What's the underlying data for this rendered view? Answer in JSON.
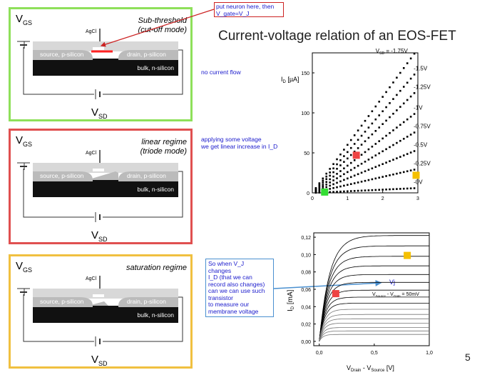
{
  "title": "Current-voltage relation of an EOS-FET",
  "page_number": "5",
  "panels": [
    {
      "mode_line1": "Sub-threshold",
      "mode_line2": "(cut-off mode)",
      "border_color": "#8ee05a"
    },
    {
      "mode_line1": "linear regime",
      "mode_line2": "(triode mode)",
      "border_color": "#e05050"
    },
    {
      "mode_line1": "saturation regime",
      "mode_line2": "",
      "border_color": "#f0c040"
    }
  ],
  "device_labels": {
    "vgs_main": "V",
    "vgs_sub": "GS",
    "vsd_main": "V",
    "vsd_sub": "SD",
    "agcl": "AgCl",
    "source": "source, p-silicon",
    "drain": "drain, p-silicon",
    "bulk": "bulk, n-silicon"
  },
  "annotations": {
    "top_box_line1": "put neuron here, then",
    "top_box_line2": "V_gate=V_J",
    "no_current": "no current flow",
    "linear_line1": "applying some voltage",
    "linear_line2": "we get linear increase in I_D",
    "bottom_box": [
      "So when V_J",
      "changes",
      "I_D (that we can",
      "record also changes)",
      "can we can use such",
      "transistor",
      "to measure our",
      "membrane voltage"
    ],
    "vj_label": "Vj"
  },
  "colors": {
    "annotation_blue": "#1a1acc",
    "box_blue": "#4a90d0",
    "red_box": "#cc2222",
    "marker_green": "#33dd33",
    "marker_red": "#ee4444",
    "marker_yellow": "#f5c000"
  },
  "chart_data": [
    {
      "type": "scatter",
      "ylabel_main": "I",
      "ylabel_sub": "D",
      "ylabel_unit": " [µA]",
      "xlim": [
        0,
        3
      ],
      "ylim": [
        0,
        175
      ],
      "x_ticks": [
        "0",
        "1",
        "2",
        "3"
      ],
      "y_ticks": [
        "0",
        "50",
        "100",
        "150"
      ],
      "series": [
        {
          "label_pre": "V",
          "label_sub": "SD",
          "label_post": " = -1.75V",
          "slope": 60
        },
        {
          "label_pre": "-1.5V",
          "label_sub": "",
          "label_post": "",
          "slope": 51
        },
        {
          "label_pre": "-1.25V",
          "label_sub": "",
          "label_post": "",
          "slope": 43
        },
        {
          "label_pre": "-1V",
          "label_sub": "",
          "label_post": "",
          "slope": 34
        },
        {
          "label_pre": "-0.75V",
          "label_sub": "",
          "label_post": "",
          "slope": 26
        },
        {
          "label_pre": "-0.5V",
          "label_sub": "",
          "label_post": "",
          "slope": 18
        },
        {
          "label_pre": "-0.25V",
          "label_sub": "",
          "label_post": "",
          "slope": 10
        },
        {
          "label_pre": "-0V",
          "label_sub": "",
          "label_post": "",
          "slope": 2
        }
      ],
      "markers": [
        {
          "x": 0.35,
          "y": 1,
          "color": "#33dd33"
        },
        {
          "x": 1.25,
          "y": 47,
          "color": "#ee4444"
        },
        {
          "x": 2.95,
          "y": 22,
          "color": "#f5c000"
        }
      ]
    },
    {
      "type": "line",
      "xlabel_pre": "V",
      "xlabel_s1": "Drain",
      "xlabel_mid": " - V",
      "xlabel_s2": "Source",
      "xlabel_post": " [V]",
      "ylabel_main": "I",
      "ylabel_sub": "D",
      "ylabel_unit": " [mA]",
      "xlim": [
        -0.05,
        1.0
      ],
      "ylim": [
        -0.005,
        0.125
      ],
      "x_ticks": [
        "0,0",
        "0,5",
        "1,0"
      ],
      "y_ticks": [
        "0,00",
        "0,02",
        "0,04",
        "0,06",
        "0,08",
        "0,10",
        "0,12"
      ],
      "sat_currents": [
        0.122,
        0.11,
        0.098,
        0.087,
        0.077,
        0.068,
        0.059,
        0.051,
        0.044,
        0.037,
        0.031,
        0.026,
        0.021,
        0.016,
        0.012,
        0.008
      ],
      "annotation_pre": "V",
      "annotation_s1": "Source",
      "annotation_mid": " - V",
      "annotation_s2": "Gate",
      "annotation_post": " = 50mV",
      "markers": [
        {
          "x": 0.15,
          "y": 0.055,
          "color": "#ee4444"
        },
        {
          "x": 0.8,
          "y": 0.099,
          "color": "#f5c000"
        }
      ]
    }
  ]
}
